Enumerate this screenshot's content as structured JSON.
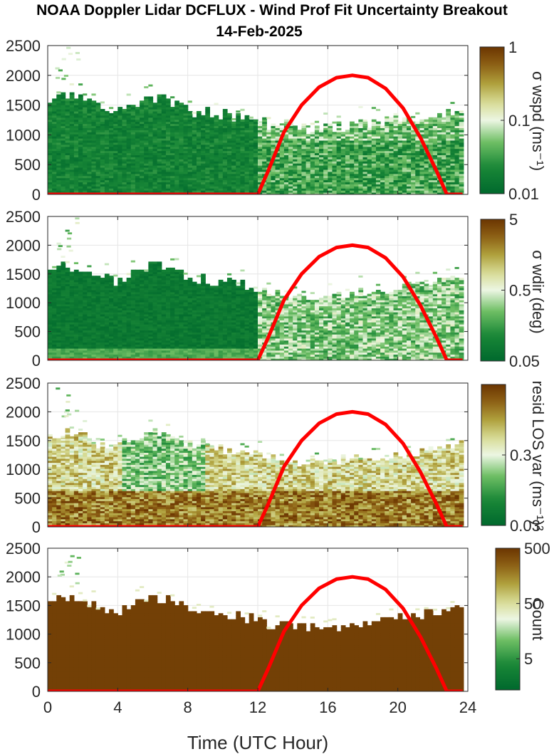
{
  "title_line1": "NOAA Doppler Lidar DCFLUX - Wind Prof Fit Uncertainty Breakout",
  "title_line2": "14-Feb-2025",
  "chart_data": [
    {
      "type": "heatmap",
      "colorbar_label": "σ wspd (ms⁻¹)",
      "colorbar_ticks": [
        "1",
        "0.1",
        "0.01"
      ],
      "colorscale": "log",
      "clim": [
        0.01,
        1
      ],
      "ylim": [
        0,
        2500
      ],
      "xlim": [
        0,
        24
      ]
    },
    {
      "type": "heatmap",
      "colorbar_label": "σ wdir (deg)",
      "colorbar_ticks": [
        "5",
        "0.5",
        "0.05"
      ],
      "colorscale": "log",
      "clim": [
        0.05,
        5
      ],
      "ylim": [
        0,
        2500
      ],
      "xlim": [
        0,
        24
      ]
    },
    {
      "type": "heatmap",
      "colorbar_label": "resid LOS var (ms⁻¹)²",
      "colorbar_ticks": [
        "0.3",
        "0.03"
      ],
      "colorscale": "log",
      "clim": [
        0.03,
        3
      ],
      "ylim": [
        0,
        2500
      ],
      "xlim": [
        0,
        24
      ]
    },
    {
      "type": "heatmap",
      "colorbar_label": "Count",
      "colorbar_ticks": [
        "500",
        "50",
        "5"
      ],
      "colorscale": "log",
      "clim": [
        1,
        500
      ],
      "ylim": [
        0,
        2500
      ],
      "xlim": [
        0,
        24
      ]
    }
  ],
  "yticks": [
    "0",
    "500",
    "1000",
    "1500",
    "2000",
    "2500"
  ],
  "xticks": [
    "0",
    "4",
    "8",
    "12",
    "16",
    "20",
    "24"
  ],
  "xlabel": "Time (UTC Hour)",
  "overlay_curve": {
    "color": "#ff0000",
    "x": [
      0,
      12,
      12.6,
      13.5,
      14.5,
      15.5,
      16.5,
      17.4,
      18.3,
      19.3,
      20.3,
      21.3,
      22.2,
      22.8,
      23.7
    ],
    "y": [
      0,
      0,
      400,
      1050,
      1500,
      1800,
      1960,
      2000,
      1960,
      1780,
      1450,
      950,
      400,
      0,
      0
    ]
  },
  "colors": {
    "dark_green": "#00692d",
    "light_green": "#ecf6e3",
    "brown": "#6b3501",
    "axis": "#262626",
    "grid": "#e6e6e6"
  }
}
